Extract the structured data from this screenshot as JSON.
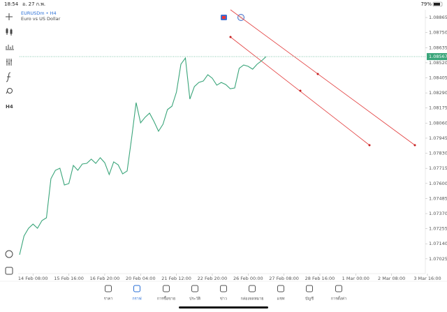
{
  "status_bar": {
    "time": "18:54",
    "date": "อ. 27 ก.พ.",
    "battery": "79%"
  },
  "toolbar": {
    "timeframe": "H4"
  },
  "chart_data": {
    "type": "line",
    "title": "EURUSDm • H4",
    "subtitle": "Euro vs US Dollar",
    "color": "#3aa57a",
    "values": [
      1.07056,
      1.072,
      1.07258,
      1.0729,
      1.07258,
      1.07317,
      1.07338,
      1.07636,
      1.077,
      1.07716,
      1.07588,
      1.07599,
      1.07737,
      1.077,
      1.07748,
      1.07753,
      1.07785,
      1.07753,
      1.07796,
      1.07758,
      1.07668,
      1.07764,
      1.07742,
      1.07673,
      1.07695,
      1.07945,
      1.08216,
      1.08062,
      1.08104,
      1.08136,
      1.08072,
      1.07998,
      1.08051,
      1.08163,
      1.08189,
      1.08296,
      1.08509,
      1.08556,
      1.08243,
      1.08338,
      1.0837,
      1.08381,
      1.08429,
      1.08402,
      1.08349,
      1.0837,
      1.08354,
      1.08322,
      1.08328,
      1.08477,
      1.08503,
      1.08493,
      1.08471,
      1.08509,
      1.08535,
      1.08567
    ],
    "last_price": 1.08567,
    "xlim": [
      0,
      91
    ],
    "xticks": [
      {
        "value": 3,
        "label": "14 Feb 08:00"
      },
      {
        "value": 11,
        "label": "15 Feb 16:00"
      },
      {
        "value": 19,
        "label": "16 Feb 20:00"
      },
      {
        "value": 27,
        "label": "20 Feb 04:00"
      },
      {
        "value": 35,
        "label": "21 Feb 12:00"
      },
      {
        "value": 43,
        "label": "22 Feb 20:00"
      },
      {
        "value": 51,
        "label": "26 Feb 00:00"
      },
      {
        "value": 59,
        "label": "27 Feb 08:00"
      },
      {
        "value": 67,
        "label": "28 Feb 16:00"
      },
      {
        "value": 75,
        "label": "1 Mar 00:00"
      },
      {
        "value": 83,
        "label": "2 Mar 08:00"
      },
      {
        "value": 91,
        "label": "3 Mar 16:00"
      }
    ],
    "ylim": [
      1.06923,
      1.08924
    ],
    "yticks": [
      1.08865,
      {
        "value": 1.0875,
        "label": "1.08750"
      },
      1.08635,
      {
        "value": 1.0852,
        "label": "1.08520"
      },
      1.08405,
      {
        "value": 1.0829,
        "label": "1.08290"
      },
      1.08175,
      {
        "value": 1.0806,
        "label": "1.08060"
      },
      1.07945,
      {
        "value": 1.0783,
        "label": "1.07830"
      },
      1.07715,
      {
        "value": 1.076,
        "label": "1.07600"
      },
      1.07485,
      {
        "value": 1.0737,
        "label": "1.07370"
      },
      1.07255,
      {
        "value": 1.0714,
        "label": "1.07140"
      },
      1.07025
    ]
  },
  "tabs": [
    "ราคา",
    "กราฟ",
    "การซื้อขาย",
    "ประวัติ",
    "ข่าว",
    "กล่องจดหมาย",
    "แชท",
    "บัญชี",
    "การตั้งค่า"
  ]
}
